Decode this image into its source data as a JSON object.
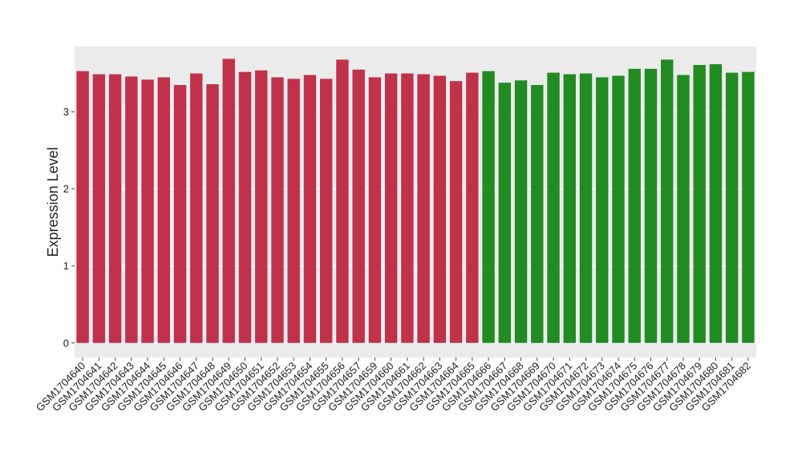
{
  "chart_data": {
    "type": "bar",
    "y_label": "Expression Level",
    "categories": [
      "GSM1704640",
      "GSM1704641",
      "GSM1704642",
      "GSM1704643",
      "GSM1704644",
      "GSM1704645",
      "GSM1704646",
      "GSM1704647",
      "GSM1704648",
      "GSM1704649",
      "GSM1704650",
      "GSM1704651",
      "GSM1704652",
      "GSM1704653",
      "GSM1704654",
      "GSM1704655",
      "GSM1704656",
      "GSM1704657",
      "GSM1704659",
      "GSM1704660",
      "GSM1704661",
      "GSM1704662",
      "GSM1704663",
      "GSM1704664",
      "GSM1704665",
      "GSM1704666",
      "GSM1704667",
      "GSM1704668",
      "GSM1704669",
      "GSM1704670",
      "GSM1704671",
      "GSM1704672",
      "GSM1704673",
      "GSM1704674",
      "GSM1704675",
      "GSM1704676",
      "GSM1704677",
      "GSM1704678",
      "GSM1704679",
      "GSM1704680",
      "GSM1704681",
      "GSM1704682"
    ],
    "values": [
      3.53,
      3.49,
      3.49,
      3.46,
      3.42,
      3.45,
      3.35,
      3.5,
      3.36,
      3.69,
      3.52,
      3.54,
      3.45,
      3.43,
      3.48,
      3.43,
      3.68,
      3.55,
      3.45,
      3.5,
      3.5,
      3.49,
      3.47,
      3.4,
      3.51,
      3.53,
      3.38,
      3.41,
      3.35,
      3.51,
      3.49,
      3.5,
      3.45,
      3.47,
      3.56,
      3.56,
      3.68,
      3.48,
      3.61,
      3.62,
      3.51,
      3.52
    ],
    "colors": [
      "#c0314a",
      "#c0314a",
      "#c0314a",
      "#c0314a",
      "#c0314a",
      "#c0314a",
      "#c0314a",
      "#c0314a",
      "#c0314a",
      "#c0314a",
      "#c0314a",
      "#c0314a",
      "#c0314a",
      "#c0314a",
      "#c0314a",
      "#c0314a",
      "#c0314a",
      "#c0314a",
      "#c0314a",
      "#c0314a",
      "#c0314a",
      "#c0314a",
      "#c0314a",
      "#c0314a",
      "#c0314a",
      "#228b22",
      "#228b22",
      "#228b22",
      "#228b22",
      "#228b22",
      "#228b22",
      "#228b22",
      "#228b22",
      "#228b22",
      "#228b22",
      "#228b22",
      "#228b22",
      "#228b22",
      "#228b22",
      "#228b22",
      "#228b22",
      "#228b22"
    ],
    "ylim": [
      -0.19,
      3.85
    ],
    "yticks": [
      0,
      1,
      2,
      3
    ],
    "grid": true
  }
}
